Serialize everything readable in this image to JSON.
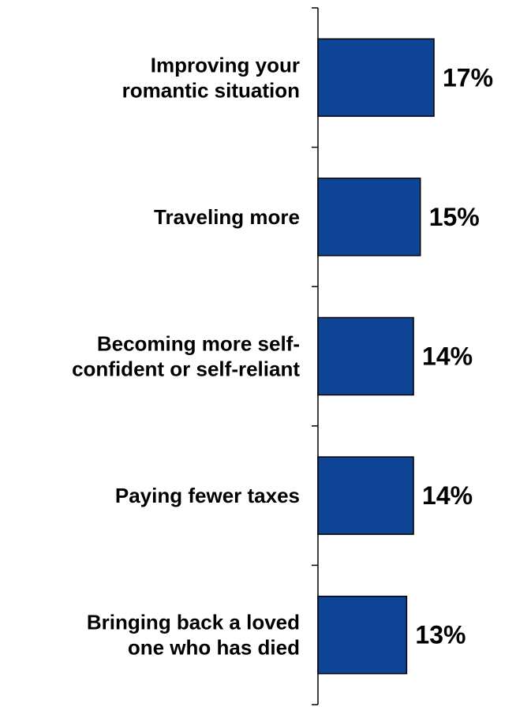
{
  "chart_data": {
    "type": "bar",
    "orientation": "horizontal",
    "categories": [
      [
        "Improving your",
        "romantic situation"
      ],
      [
        "Traveling more"
      ],
      [
        "Becoming more self-",
        "confident or self-reliant"
      ],
      [
        "Paying fewer taxes"
      ],
      [
        "Bringing back a loved",
        "one who has died"
      ]
    ],
    "values": [
      17,
      15,
      14,
      14,
      13
    ],
    "value_labels": [
      "17%",
      "15%",
      "14%",
      "14%",
      "13%"
    ],
    "title": "",
    "xlabel": "",
    "ylabel": "",
    "grid": false,
    "legend": "none",
    "colors": {
      "bar_fill": "#0d4496",
      "bar_stroke": "#000000",
      "axis": "#000000",
      "text": "#000000"
    }
  }
}
